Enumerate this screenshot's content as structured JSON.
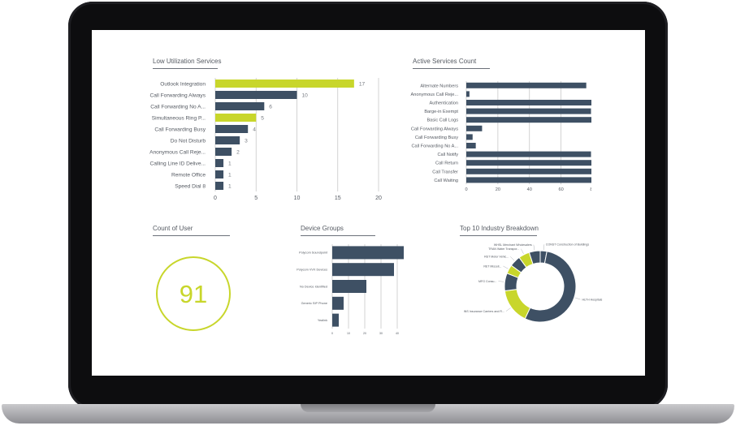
{
  "colors": {
    "accent": "#c8d62b",
    "bar": "#3e5064",
    "grid": "#c8c8c8",
    "text": "#555a62"
  },
  "panels": {
    "low_util": {
      "title": "Low Utilization Services"
    },
    "active_services": {
      "title": "Active Services Count"
    },
    "count_of_user": {
      "title": "Count of User",
      "value": "91"
    },
    "device_groups": {
      "title": "Device Groups"
    },
    "industry": {
      "title": "Top 10 Industry Breakdown"
    }
  },
  "chart_data": [
    {
      "id": "low_util",
      "type": "bar",
      "orientation": "horizontal",
      "title": "Low Utilization Services",
      "categories": [
        "Outlook Integration",
        "Call Forwarding Always",
        "Call Forwarding No A...",
        "Simultaneous Ring P...",
        "Call Forwarding Busy",
        "Do Not Disturb",
        "Anonymous Call Reje...",
        "Calling Line ID Delive...",
        "Remote Office",
        "Speed Dial 8"
      ],
      "values": [
        17,
        10,
        6,
        5,
        4,
        3,
        2,
        1,
        1,
        1
      ],
      "highlight": [
        0,
        3
      ],
      "data_labels": [
        "17",
        "10",
        "6",
        "5",
        "4",
        "3",
        "2",
        "1",
        "1",
        "1"
      ],
      "xlim": [
        0,
        20
      ],
      "xticks": [
        "0",
        "5",
        "10",
        "15",
        "20"
      ],
      "grid": true
    },
    {
      "id": "active_services",
      "type": "bar",
      "orientation": "horizontal",
      "title": "Active Services Count",
      "categories": [
        "Alternate Numbers",
        "Anonymous Call Reje...",
        "Authentication",
        "Barge-in Exempt",
        "Basic Call Logs",
        "Call Forwarding Always",
        "Call Forwarding Busy",
        "Call Forwarding No A...",
        "Call Notify",
        "Call Return",
        "Call Transfer",
        "Call Waiting"
      ],
      "values": [
        76,
        2,
        82,
        79,
        82,
        10,
        4,
        6,
        79,
        82,
        82,
        81
      ],
      "xlim": [
        0,
        88
      ],
      "xticks": [
        "0",
        "20",
        "40",
        "60",
        "80"
      ],
      "grid": true
    },
    {
      "id": "device_groups",
      "type": "bar",
      "orientation": "horizontal",
      "title": "Device Groups",
      "categories": [
        "Polycom Soundpoint",
        "Polycom VVX Devices",
        "No Device Identified",
        "Generic SIP Phone",
        "Yealink"
      ],
      "values": [
        44,
        38,
        21,
        7,
        4
      ],
      "xlim": [
        0,
        50
      ],
      "xticks": [
        "0",
        "10",
        "20",
        "30",
        "40"
      ],
      "grid": true
    },
    {
      "id": "industry",
      "type": "pie",
      "donut": true,
      "title": "Top 10 Industry Breakdown",
      "labels": [
        "CONST Construction of Buildings",
        "HLTH Hospitals",
        "INS Insurance Carriers and R...",
        "MFG Consu...",
        "RET Miscell...",
        "RET Motor Vehic...",
        "TRAN Water Transpor...",
        "WHSL Merchant Wholesalers"
      ],
      "values": [
        3,
        54,
        16,
        8,
        4,
        5,
        5,
        5
      ],
      "slice_colors": [
        "#3e5064",
        "#3e5064",
        "#c8d62b",
        "#3e5064",
        "#c8d62b",
        "#3e5064",
        "#c8d62b",
        "#3e5064"
      ]
    }
  ]
}
